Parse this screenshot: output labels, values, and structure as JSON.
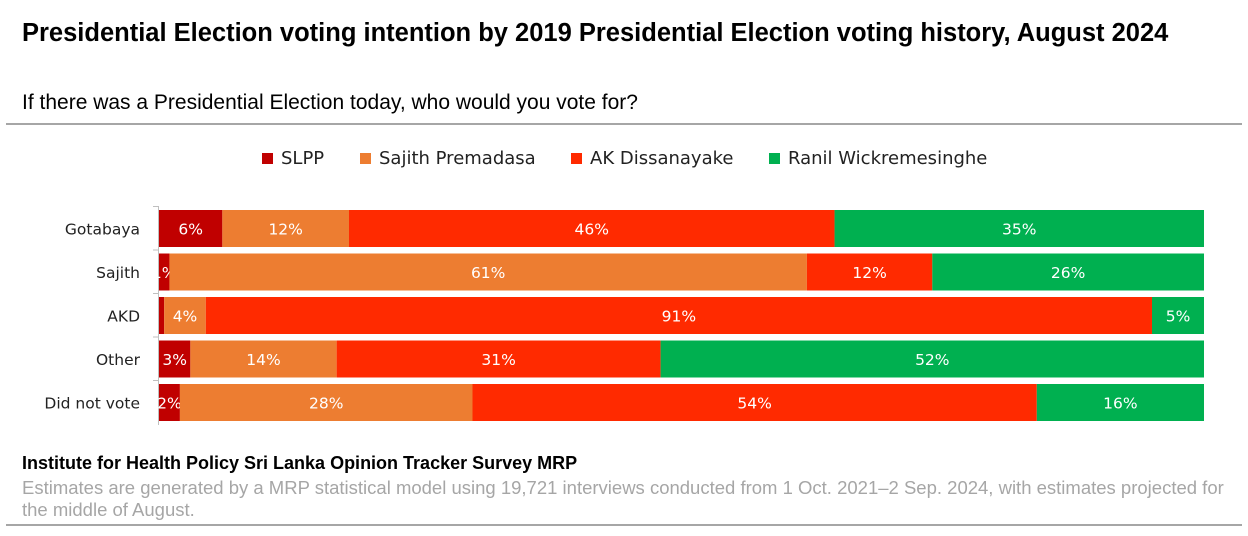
{
  "title": "Presidential Election voting intention by 2019 Presidential Election voting history, August 2024",
  "subtitle": "If there was a Presidential Election today, who would you vote for?",
  "footer": {
    "source": "Institute for Health Policy Sri Lanka Opinion Tracker Survey MRP",
    "note": "Estimates are generated by a MRP statistical model using 19,721 interviews conducted from 1 Oct. 2021–2 Sep. 2024, with estimates projected for the middle of August."
  },
  "chart_data": {
    "type": "bar",
    "orientation": "horizontal",
    "stacked": "100%",
    "categories": [
      "Gotabaya",
      "Sajith",
      "AKD",
      "Other",
      "Did not vote"
    ],
    "series": [
      {
        "name": "SLPP",
        "color": "#c00000",
        "values": [
          6,
          1,
          0.5,
          3,
          2
        ],
        "labels": [
          "6%",
          "1%",
          "",
          "3%",
          "2%"
        ]
      },
      {
        "name": "Sajith Premadasa",
        "color": "#ed7d31",
        "values": [
          12,
          61,
          4,
          14,
          28
        ],
        "labels": [
          "12%",
          "61%",
          "4%",
          "14%",
          "28%"
        ]
      },
      {
        "name": "AK Dissanayake",
        "color": "#ff2a00",
        "values": [
          46,
          12,
          91,
          31,
          54
        ],
        "labels": [
          "46%",
          "12%",
          "91%",
          "31%",
          "54%"
        ]
      },
      {
        "name": "Ranil Wickremesinghe",
        "color": "#00b050",
        "values": [
          35,
          26,
          5,
          52,
          16
        ],
        "labels": [
          "35%",
          "26%",
          "5%",
          "52%",
          "16%"
        ]
      }
    ],
    "xlim": [
      0,
      100
    ],
    "legend_position": "top",
    "grid": false
  }
}
